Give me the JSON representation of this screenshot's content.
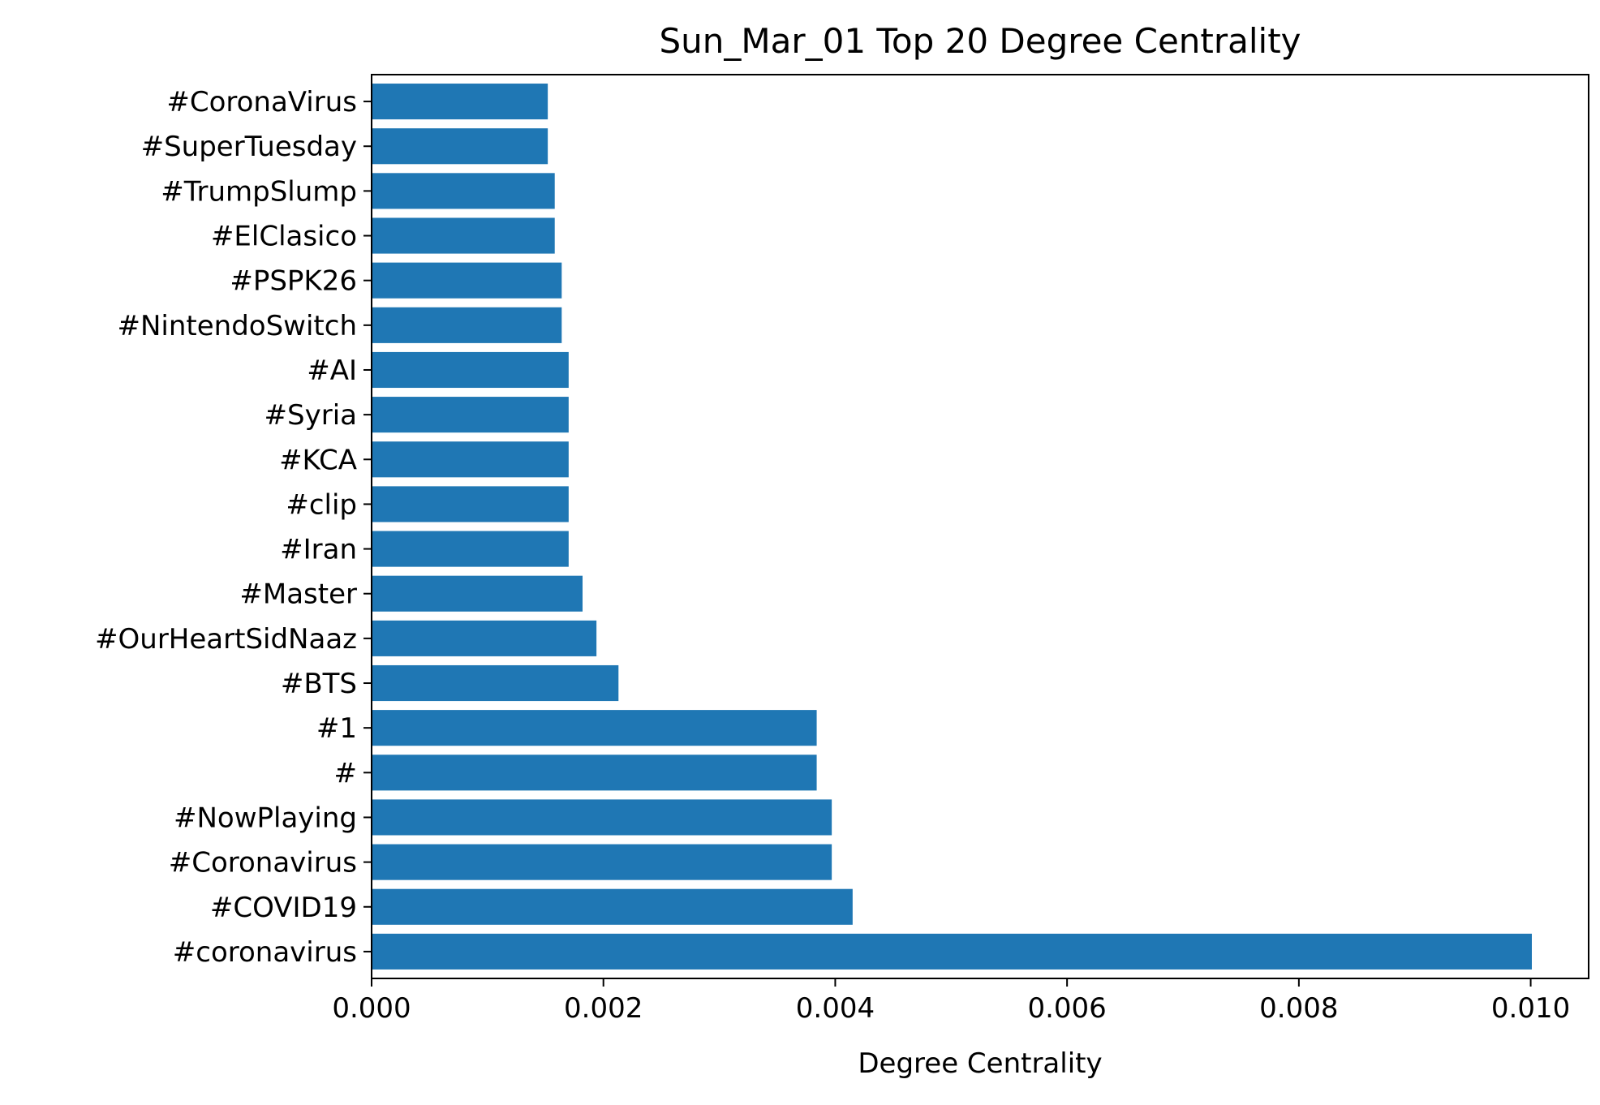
{
  "chart_data": {
    "type": "bar",
    "orientation": "horizontal",
    "title": "Sun_Mar_01 Top 20 Degree Centrality",
    "xlabel": "Degree Centrality",
    "ylabel": "",
    "xlim": [
      0,
      0.0105
    ],
    "xticks": [
      "0.000",
      "0.002",
      "0.004",
      "0.006",
      "0.008",
      "0.010"
    ],
    "grid": false,
    "bar_color": "#1f77b4",
    "categories": [
      "#coronavirus",
      "#COVID19",
      "#Coronavirus",
      "#NowPlaying",
      "#",
      "#1",
      "#BTS",
      "#OurHeartSidNaaz",
      "#Master",
      "#Iran",
      "#clip",
      "#KCA",
      "#Syria",
      "#AI",
      "#NintendoSwitch",
      "#PSPK26",
      "#ElClasico",
      "#TrumpSlump",
      "#SuperTuesday",
      "#CoronaVirus"
    ],
    "values": [
      0.01001,
      0.00415,
      0.00397,
      0.00397,
      0.00384,
      0.00384,
      0.00213,
      0.00194,
      0.00182,
      0.0017,
      0.0017,
      0.0017,
      0.0017,
      0.0017,
      0.00164,
      0.00164,
      0.00158,
      0.00158,
      0.00152,
      0.00152
    ]
  }
}
